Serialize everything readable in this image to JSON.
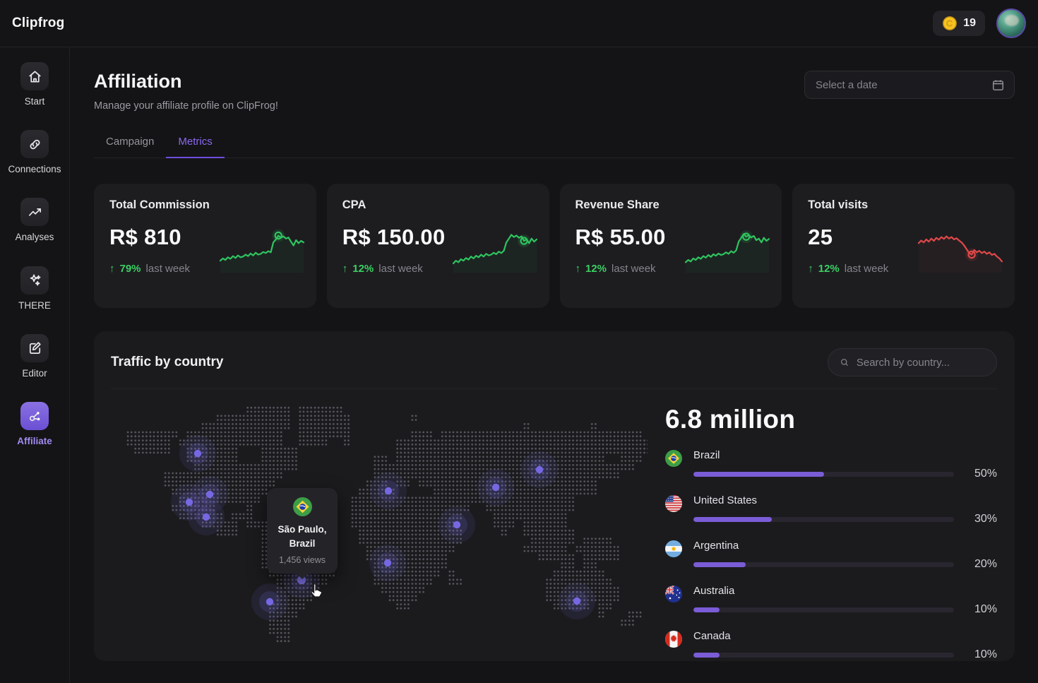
{
  "app": {
    "logo": "Clipfrog"
  },
  "topbar": {
    "coins": "19"
  },
  "sidebar": {
    "items": [
      {
        "id": "start",
        "label": "Start",
        "icon": "home",
        "active": false
      },
      {
        "id": "connections",
        "label": "Connections",
        "icon": "link",
        "active": false
      },
      {
        "id": "analyses",
        "label": "Analyses",
        "icon": "trend",
        "active": false
      },
      {
        "id": "there",
        "label": "THERE",
        "icon": "sparkles",
        "active": false
      },
      {
        "id": "editor",
        "label": "Editor",
        "icon": "edit",
        "active": false
      },
      {
        "id": "affiliate",
        "label": "Affiliate",
        "icon": "share",
        "active": true
      }
    ]
  },
  "header": {
    "title": "Affiliation",
    "subtitle": "Manage your affiliate profile on ClipFrog!",
    "date_placeholder": "Select a date"
  },
  "tabs": {
    "items": [
      "Campaign",
      "Metrics"
    ],
    "active": 1
  },
  "metrics": {
    "cards": [
      {
        "title": "Total Commission",
        "value": "R$ 810",
        "arrow": "↑",
        "delta": "79%",
        "delta_label": "last week",
        "line_color": "#2fc45f",
        "marker_index": 23,
        "spark": [
          22,
          28,
          24,
          31,
          27,
          34,
          29,
          36,
          31,
          33,
          38,
          34,
          41,
          36,
          43,
          38,
          40,
          45,
          42,
          47,
          44,
          70,
          78,
          88,
          82,
          86,
          80,
          83,
          72,
          62,
          76,
          68,
          74,
          70
        ]
      },
      {
        "title": "CPA",
        "value": "R$ 150.00",
        "arrow": "↑",
        "delta": "12%",
        "delta_label": "last week",
        "line_color": "#2fc45f",
        "marker_index": 28,
        "spark": [
          15,
          22,
          18,
          26,
          22,
          29,
          25,
          33,
          28,
          35,
          31,
          38,
          33,
          40,
          36,
          38,
          43,
          39,
          46,
          42,
          48,
          70,
          80,
          90,
          84,
          88,
          82,
          86,
          74,
          78,
          68,
          80,
          72,
          78
        ]
      },
      {
        "title": "Revenue Share",
        "value": "R$ 55.00",
        "arrow": "↑",
        "delta": "12%",
        "delta_label": "last week",
        "line_color": "#2fc45f",
        "marker_index": 24,
        "spark": [
          18,
          24,
          20,
          28,
          24,
          31,
          27,
          34,
          30,
          37,
          32,
          39,
          35,
          41,
          37,
          39,
          44,
          40,
          47,
          43,
          49,
          72,
          82,
          92,
          85,
          89,
          83,
          87,
          76,
          80,
          70,
          82,
          74,
          79
        ]
      },
      {
        "title": "Total visits",
        "value": "25",
        "arrow": "↑",
        "delta": "12%",
        "delta_label": "last week",
        "line_color": "#e04848",
        "marker_index": 21,
        "spark": [
          68,
          75,
          70,
          78,
          72,
          80,
          74,
          82,
          77,
          84,
          79,
          86,
          80,
          84,
          78,
          81,
          75,
          70,
          62,
          52,
          42,
          38,
          50,
          44,
          48,
          42,
          46,
          40,
          44,
          37,
          40,
          33,
          28,
          20
        ]
      }
    ]
  },
  "traffic": {
    "title": "Traffic by country",
    "search_placeholder": "Search by country...",
    "total": "6.8 million",
    "countries": [
      {
        "name": "Brazil",
        "percent": 50,
        "percent_label": "50%",
        "flag": "br"
      },
      {
        "name": "United States",
        "percent": 30,
        "percent_label": "30%",
        "flag": "us"
      },
      {
        "name": "Argentina",
        "percent": 20,
        "percent_label": "20%",
        "flag": "ar"
      },
      {
        "name": "Australia",
        "percent": 10,
        "percent_label": "10%",
        "flag": "au"
      },
      {
        "name": "Canada",
        "percent": 10,
        "percent_label": "10%",
        "flag": "ca"
      }
    ],
    "tooltip": {
      "city": "São Paulo,",
      "country": "Brazil",
      "views": "1,456 views",
      "flag": "br"
    },
    "map": {
      "markers": [
        [
          123,
          68
        ],
        [
          140,
          126
        ],
        [
          111,
          137
        ],
        [
          135,
          158
        ],
        [
          393,
          121
        ],
        [
          545,
          116
        ],
        [
          607,
          91
        ],
        [
          490,
          169
        ],
        [
          392,
          223
        ],
        [
          270,
          247
        ],
        [
          225,
          278
        ],
        [
          660,
          277
        ]
      ],
      "tooltip_marker": 9,
      "land": [
        [
          [
            18,
            23
          ],
          [
            25,
            30
          ]
        ],
        [
          [
            14,
            23
          ],
          [
            25,
            31
          ],
          [
            40,
            40
          ]
        ],
        [
          [
            12,
            23
          ],
          [
            25,
            31
          ],
          [
            55,
            55
          ],
          [
            64,
            64
          ]
        ],
        [
          [
            2,
            8
          ],
          [
            10,
            22
          ],
          [
            25,
            31
          ],
          [
            40,
            42
          ],
          [
            44,
            70
          ]
        ],
        [
          [
            2,
            7
          ],
          [
            9,
            22
          ],
          [
            25,
            28
          ],
          [
            31,
            31
          ],
          [
            38,
            71
          ]
        ],
        [
          [
            3,
            7
          ],
          [
            10,
            16
          ],
          [
            20,
            24
          ],
          [
            38,
            71
          ]
        ],
        [
          [
            10,
            16
          ],
          [
            20,
            24
          ],
          [
            35,
            36
          ],
          [
            38,
            65
          ],
          [
            68,
            70
          ]
        ],
        [
          [
            11,
            24
          ],
          [
            35,
            69
          ]
        ],
        [
          [
            7,
            22
          ],
          [
            35,
            67
          ]
        ],
        [
          [
            7,
            21
          ],
          [
            34,
            36
          ],
          [
            38,
            39
          ],
          [
            41,
            64
          ]
        ],
        [
          [
            8,
            20
          ],
          [
            33,
            37
          ],
          [
            43,
            64
          ]
        ],
        [
          [
            9,
            19
          ],
          [
            32,
            61
          ]
        ],
        [
          [
            8,
            13
          ],
          [
            18,
            18
          ],
          [
            32,
            47
          ],
          [
            50,
            61
          ]
        ],
        [
          [
            9,
            14
          ],
          [
            16,
            18
          ],
          [
            32,
            46
          ],
          [
            51,
            60
          ]
        ],
        [
          [
            12,
            16
          ],
          [
            18,
            20
          ],
          [
            32,
            45
          ],
          [
            51,
            53
          ],
          [
            55,
            60
          ]
        ],
        [
          [
            14,
            16
          ],
          [
            20,
            25
          ],
          [
            33,
            46
          ],
          [
            52,
            52
          ],
          [
            55,
            61
          ]
        ],
        [
          [
            20,
            25
          ],
          [
            33,
            46
          ],
          [
            56,
            61
          ],
          [
            63,
            66
          ]
        ],
        [
          [
            20,
            28
          ],
          [
            34,
            45
          ],
          [
            55,
            60
          ],
          [
            62,
            67
          ]
        ],
        [
          [
            20,
            29
          ],
          [
            34,
            44
          ],
          [
            57,
            61
          ],
          [
            63,
            67
          ]
        ],
        [
          [
            20,
            29
          ],
          [
            35,
            44
          ],
          [
            60,
            61
          ],
          [
            63,
            64
          ]
        ],
        [
          [
            21,
            29
          ],
          [
            35,
            43
          ],
          [
            45,
            45
          ],
          [
            59,
            65
          ]
        ],
        [
          [
            22,
            28
          ],
          [
            35,
            42
          ],
          [
            45,
            46
          ],
          [
            58,
            66
          ]
        ],
        [
          [
            22,
            27
          ],
          [
            36,
            41
          ],
          [
            58,
            67
          ]
        ],
        [
          [
            22,
            26
          ],
          [
            37,
            40
          ],
          [
            58,
            67
          ]
        ],
        [
          [
            21,
            25
          ],
          [
            38,
            39
          ],
          [
            59,
            63
          ],
          [
            65,
            66
          ]
        ],
        [
          [
            21,
            24
          ],
          [
            65,
            65
          ],
          [
            69,
            70
          ]
        ],
        [
          [
            21,
            23
          ],
          [
            68,
            69
          ]
        ],
        [
          [
            21,
            23
          ]
        ],
        [
          [
            22,
            23
          ]
        ]
      ]
    }
  },
  "colors": {
    "accent": "#7a5cd6",
    "green": "#3bcf63",
    "red": "#e04848",
    "marker": "#7668e2",
    "dot": "#54545c"
  }
}
